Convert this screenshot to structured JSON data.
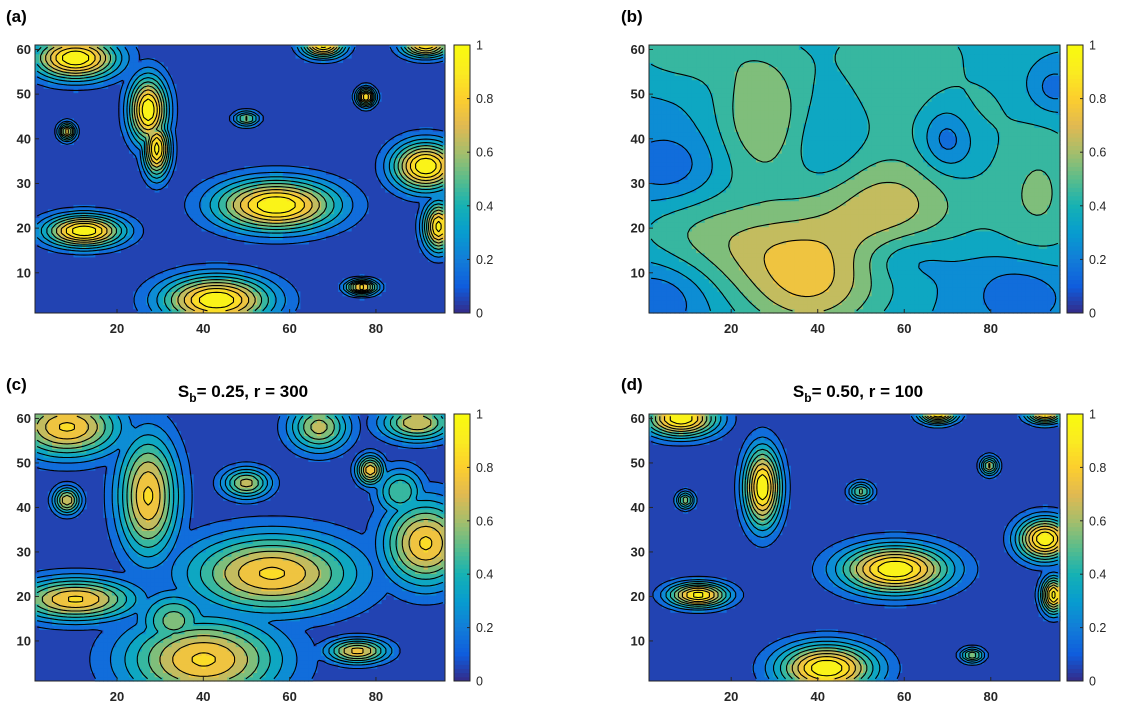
{
  "chart_data": [
    {
      "panel_label": "(a)",
      "type": "heatmap",
      "subtype": "filled-contour",
      "title": "",
      "xlim": [
        1,
        96
      ],
      "ylim": [
        1,
        61
      ],
      "x_ticks": [
        "20",
        "40",
        "60",
        "80"
      ],
      "y_ticks": [
        "10",
        "20",
        "30",
        "40",
        "50",
        "60"
      ],
      "colorbar": {
        "min": 0,
        "max": 1,
        "ticks": [
          "0",
          "0.2",
          "0.4",
          "0.6",
          "0.8",
          "1"
        ]
      },
      "colormap": "parula",
      "blobs": [
        {
          "x": 10,
          "y": 59,
          "sx": 7,
          "sy": 3.5,
          "value": 1.0
        },
        {
          "x": 27,
          "y": 47,
          "sx": 3.2,
          "sy": 5.5,
          "value": 1.0
        },
        {
          "x": 29,
          "y": 38,
          "sx": 2.2,
          "sy": 4.5,
          "value": 0.95
        },
        {
          "x": 8,
          "y": 42,
          "sx": 1.4,
          "sy": 1.4,
          "value": 0.8
        },
        {
          "x": 50,
          "y": 45,
          "sx": 2.2,
          "sy": 1.2,
          "value": 0.55
        },
        {
          "x": 78,
          "y": 50,
          "sx": 1.5,
          "sy": 1.5,
          "value": 0.95
        },
        {
          "x": 57,
          "y": 25,
          "sx": 10,
          "sy": 4.2,
          "value": 1.0
        },
        {
          "x": 12,
          "y": 19,
          "sx": 6.5,
          "sy": 2.6,
          "value": 1.0
        },
        {
          "x": 43,
          "y": 3,
          "sx": 9,
          "sy": 4,
          "value": 1.0
        },
        {
          "x": 77,
          "y": 6,
          "sx": 2.5,
          "sy": 1.2,
          "value": 0.9
        },
        {
          "x": 92,
          "y": 34,
          "sx": 5.5,
          "sy": 4,
          "value": 1.0
        },
        {
          "x": 95,
          "y": 20,
          "sx": 2.5,
          "sy": 4,
          "value": 0.95
        },
        {
          "x": 68,
          "y": 62,
          "sx": 3.5,
          "sy": 2,
          "value": 0.95
        },
        {
          "x": 92,
          "y": 62,
          "sx": 4,
          "sy": 2,
          "value": 0.9
        }
      ]
    },
    {
      "panel_label": "(b)",
      "type": "heatmap",
      "subtype": "filled-contour",
      "title": "",
      "xlim": [
        1,
        96
      ],
      "ylim": [
        1,
        61
      ],
      "x_ticks": [
        "20",
        "40",
        "60",
        "80"
      ],
      "y_ticks": [
        "10",
        "20",
        "30",
        "40",
        "50",
        "60"
      ],
      "colorbar": {
        "min": 0,
        "max": 1,
        "ticks": [
          "0",
          "0.2",
          "0.4",
          "0.6",
          "0.8",
          "1"
        ]
      },
      "colormap": "parula",
      "blobs": [
        {
          "x": 27,
          "y": 46,
          "sx": 8,
          "sy": 11,
          "value": 0.35
        },
        {
          "x": 56,
          "y": 25,
          "sx": 14,
          "sy": 9,
          "value": 0.4
        },
        {
          "x": 38,
          "y": 5,
          "sx": 12,
          "sy": 8,
          "value": 0.4
        },
        {
          "x": 10,
          "y": 20,
          "sx": 12,
          "sy": 8,
          "value": 0.18
        },
        {
          "x": 92,
          "y": 28,
          "sx": 8,
          "sy": 14,
          "value": 0.25
        },
        {
          "x": 62,
          "y": 62,
          "sx": 22,
          "sy": 6,
          "value": 0.1
        },
        {
          "x": 8,
          "y": 62,
          "sx": 10,
          "sy": 6,
          "value": 0.22
        },
        {
          "x": 58,
          "y": 52,
          "sx": 10,
          "sy": 10,
          "value": 0.18
        },
        {
          "x": 78,
          "y": 48,
          "sx": 6,
          "sy": 6,
          "value": 0.1
        },
        {
          "x": 30,
          "y": 15,
          "sx": 14,
          "sy": 7,
          "value": 0.25
        }
      ],
      "base": 0.28,
      "dips": [
        {
          "x": 70,
          "y": 40,
          "sx": 4,
          "sy": 5,
          "value": -0.22
        },
        {
          "x": 5,
          "y": 33,
          "sx": 8,
          "sy": 6,
          "value": -0.18
        },
        {
          "x": 88,
          "y": 5,
          "sx": 8,
          "sy": 6,
          "value": -0.2
        },
        {
          "x": 3,
          "y": 4,
          "sx": 8,
          "sy": 6,
          "value": -0.18
        },
        {
          "x": 60,
          "y": 13,
          "sx": 8,
          "sy": 4,
          "value": -0.14
        },
        {
          "x": 42,
          "y": 38,
          "sx": 6,
          "sy": 7,
          "value": -0.1
        },
        {
          "x": 95,
          "y": 52,
          "sx": 4,
          "sy": 4,
          "value": -0.18
        }
      ]
    },
    {
      "panel_label": "(c)",
      "type": "heatmap",
      "subtype": "filled-contour",
      "title": "S_b= 0.25, r = 300",
      "title_main": "S",
      "title_sub": "b",
      "title_rest": "= 0.25, r = 300",
      "xlim": [
        1,
        96
      ],
      "ylim": [
        1,
        61
      ],
      "x_ticks": [
        "20",
        "40",
        "60",
        "80"
      ],
      "y_ticks": [
        "10",
        "20",
        "30",
        "40",
        "50",
        "60"
      ],
      "colorbar": {
        "min": 0,
        "max": 1,
        "ticks": [
          "0",
          "0.2",
          "0.4",
          "0.6",
          "0.8",
          "1"
        ]
      },
      "colormap": "parula",
      "blobs": [
        {
          "x": 8,
          "y": 59,
          "sx": 9,
          "sy": 5,
          "value": 0.82
        },
        {
          "x": 27,
          "y": 43,
          "sx": 5,
          "sy": 10,
          "value": 0.82
        },
        {
          "x": 8,
          "y": 42,
          "sx": 2.2,
          "sy": 2.2,
          "value": 0.7
        },
        {
          "x": 50,
          "y": 46,
          "sx": 4,
          "sy": 2.5,
          "value": 0.65
        },
        {
          "x": 79,
          "y": 49,
          "sx": 2.2,
          "sy": 2.4,
          "value": 0.8
        },
        {
          "x": 56,
          "y": 25,
          "sx": 14,
          "sy": 6.5,
          "value": 0.82
        },
        {
          "x": 10,
          "y": 19,
          "sx": 10,
          "sy": 3.5,
          "value": 0.82
        },
        {
          "x": 40,
          "y": 5,
          "sx": 13,
          "sy": 7,
          "value": 0.82
        },
        {
          "x": 76,
          "y": 7,
          "sx": 5,
          "sy": 2,
          "value": 0.75
        },
        {
          "x": 92,
          "y": 32,
          "sx": 7,
          "sy": 7,
          "value": 0.82
        },
        {
          "x": 67,
          "y": 59,
          "sx": 5,
          "sy": 4,
          "value": 0.65
        },
        {
          "x": 90,
          "y": 60,
          "sx": 6,
          "sy": 3,
          "value": 0.7
        },
        {
          "x": 33,
          "y": 14,
          "sx": 6,
          "sy": 5,
          "value": 0.55
        },
        {
          "x": 86,
          "y": 44,
          "sx": 4,
          "sy": 4,
          "value": 0.5
        }
      ]
    },
    {
      "panel_label": "(d)",
      "type": "heatmap",
      "subtype": "filled-contour",
      "title": "S_b= 0.50, r = 100",
      "title_main": "S",
      "title_sub": "b",
      "title_rest": "= 0.50, r = 100",
      "xlim": [
        1,
        96
      ],
      "ylim": [
        1,
        61
      ],
      "x_ticks": [
        "20",
        "40",
        "60",
        "80"
      ],
      "y_ticks": [
        "10",
        "20",
        "30",
        "40",
        "50",
        "60"
      ],
      "colorbar": {
        "min": 0,
        "max": 1,
        "ticks": [
          "0",
          "0.2",
          "0.4",
          "0.6",
          "0.8",
          "1"
        ]
      },
      "colormap": "parula",
      "blobs": [
        {
          "x": 8,
          "y": 61,
          "sx": 6,
          "sy": 3,
          "value": 1.0
        },
        {
          "x": 27,
          "y": 45,
          "sx": 3,
          "sy": 6.5,
          "value": 1.0
        },
        {
          "x": 9,
          "y": 42,
          "sx": 1.4,
          "sy": 1.4,
          "value": 0.6
        },
        {
          "x": 50,
          "y": 44,
          "sx": 2,
          "sy": 1.5,
          "value": 0.55
        },
        {
          "x": 80,
          "y": 50,
          "sx": 1.5,
          "sy": 1.5,
          "value": 0.65
        },
        {
          "x": 58,
          "y": 26,
          "sx": 9,
          "sy": 4,
          "value": 1.0
        },
        {
          "x": 12,
          "y": 20,
          "sx": 5,
          "sy": 2,
          "value": 0.95
        },
        {
          "x": 42,
          "y": 3,
          "sx": 8,
          "sy": 4,
          "value": 1.0
        },
        {
          "x": 76,
          "y": 6,
          "sx": 2,
          "sy": 1.2,
          "value": 0.6
        },
        {
          "x": 93,
          "y": 33,
          "sx": 4.5,
          "sy": 3.5,
          "value": 1.0
        },
        {
          "x": 95,
          "y": 20,
          "sx": 2,
          "sy": 3,
          "value": 0.95
        },
        {
          "x": 68,
          "y": 62,
          "sx": 3,
          "sy": 1.5,
          "value": 0.9
        },
        {
          "x": 93,
          "y": 62,
          "sx": 3,
          "sy": 1.5,
          "value": 0.85
        }
      ]
    }
  ]
}
